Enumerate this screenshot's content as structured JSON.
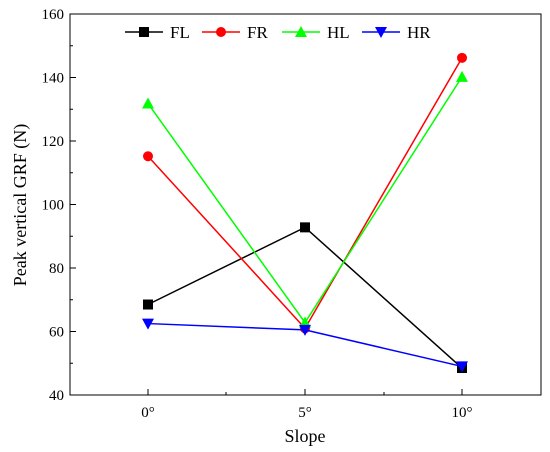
{
  "chart_data": {
    "type": "line",
    "categories": [
      "0°",
      "5°",
      "10°"
    ],
    "xlabel": "Slope",
    "ylabel": "Peak vertical GRF (N)",
    "ylim": [
      40,
      160
    ],
    "yticks": [
      40,
      60,
      80,
      100,
      120,
      140,
      160
    ],
    "grid": false,
    "legend_position": "top",
    "series": [
      {
        "name": "FL",
        "values": [
          68.5,
          92.8,
          48.5
        ],
        "color": "#000000",
        "marker": "square"
      },
      {
        "name": "FR",
        "values": [
          115.2,
          61.0,
          146.2
        ],
        "color": "#ff0000",
        "marker": "circle"
      },
      {
        "name": "HL",
        "values": [
          131.8,
          62.8,
          140.2
        ],
        "color": "#00ff00",
        "marker": "triangle-up"
      },
      {
        "name": "HR",
        "values": [
          62.5,
          60.5,
          49.0
        ],
        "color": "#0000ff",
        "marker": "triangle-down"
      }
    ]
  }
}
